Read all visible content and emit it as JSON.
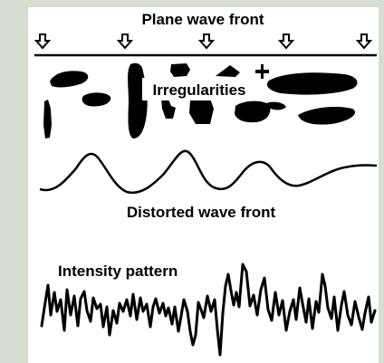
{
  "figure": {
    "title": "Plane wave front",
    "irregularities_label": "Irregularities",
    "distorted_label": "Distorted wave front",
    "intensity_label": "Intensity pattern"
  },
  "colors": {
    "background": "#d6ddd1",
    "panel": "#ffffff",
    "ink": "#000000"
  }
}
